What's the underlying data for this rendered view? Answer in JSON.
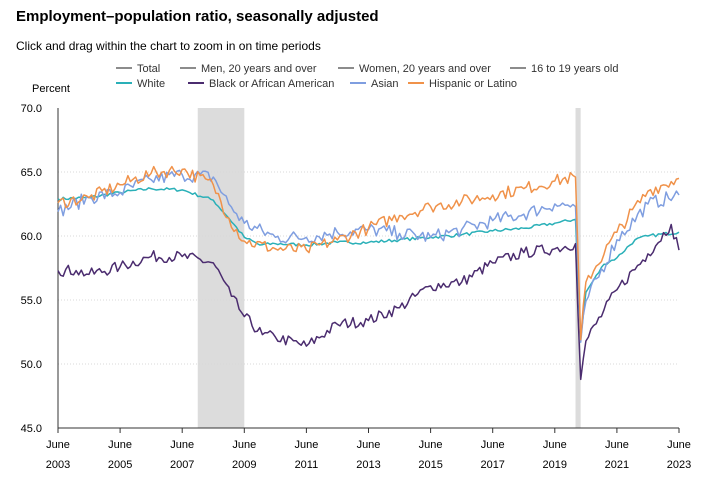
{
  "header": {
    "title": "Employment–population ratio, seasonally adjusted",
    "subtitle": "Click and drag within the chart to zoom in on time periods"
  },
  "chart_data": {
    "type": "line",
    "ylabel": "Percent",
    "ylim": [
      45.0,
      70.0
    ],
    "yticks": [
      "70.0",
      "65.0",
      "60.0",
      "55.0",
      "50.0",
      "45.0"
    ],
    "xlim": [
      "2003-06",
      "2023-06"
    ],
    "xticks": [
      {
        "month": "June",
        "year": "2003",
        "t": "2003-06"
      },
      {
        "month": "June",
        "year": "2005",
        "t": "2005-06"
      },
      {
        "month": "June",
        "year": "2007",
        "t": "2007-06"
      },
      {
        "month": "June",
        "year": "2009",
        "t": "2009-06"
      },
      {
        "month": "June",
        "year": "2011",
        "t": "2011-06"
      },
      {
        "month": "June",
        "year": "2013",
        "t": "2013-06"
      },
      {
        "month": "June",
        "year": "2015",
        "t": "2015-06"
      },
      {
        "month": "June",
        "year": "2017",
        "t": "2017-06"
      },
      {
        "month": "June",
        "year": "2019",
        "t": "2019-06"
      },
      {
        "month": "June",
        "year": "2021",
        "t": "2021-06"
      },
      {
        "month": "June",
        "year": "2023",
        "t": "2023-06"
      }
    ],
    "recessions": [
      {
        "start": "2007-12",
        "end": "2009-06"
      },
      {
        "start": "2020-02",
        "end": "2020-04"
      }
    ],
    "legend": [
      {
        "name": "Total",
        "color": "#8c8c8c",
        "plotted": false
      },
      {
        "name": "Men, 20 years and over",
        "color": "#8c8c8c",
        "plotted": false
      },
      {
        "name": "Women, 20 years and over",
        "color": "#8c8c8c",
        "plotted": false
      },
      {
        "name": "16 to 19 years old",
        "color": "#8c8c8c",
        "plotted": false
      },
      {
        "name": "White",
        "color": "#2ab0b8",
        "plotted": true
      },
      {
        "name": "Black or African American",
        "color": "#4b2c6f",
        "plotted": true
      },
      {
        "name": "Asian",
        "color": "#7f9ee0",
        "plotted": true
      },
      {
        "name": "Hispanic or Latino",
        "color": "#f0924a",
        "plotted": true
      }
    ],
    "series": [
      {
        "name": "White",
        "color": "#2ab0b8",
        "points": [
          [
            "2003-06",
            62.9
          ],
          [
            "2004-06",
            63.0
          ],
          [
            "2005-06",
            63.4
          ],
          [
            "2006-06",
            63.7
          ],
          [
            "2007-06",
            63.6
          ],
          [
            "2008-06",
            62.8
          ],
          [
            "2008-12",
            61.4
          ],
          [
            "2009-06",
            59.9
          ],
          [
            "2009-12",
            59.3
          ],
          [
            "2010-06",
            59.4
          ],
          [
            "2011-06",
            59.3
          ],
          [
            "2012-06",
            59.5
          ],
          [
            "2013-06",
            59.5
          ],
          [
            "2014-06",
            59.7
          ],
          [
            "2015-06",
            59.9
          ],
          [
            "2016-06",
            60.1
          ],
          [
            "2017-06",
            60.4
          ],
          [
            "2018-06",
            60.6
          ],
          [
            "2019-06",
            61.0
          ],
          [
            "2020-02",
            61.3
          ],
          [
            "2020-04",
            52.0
          ],
          [
            "2020-06",
            55.6
          ],
          [
            "2021-01",
            57.8
          ],
          [
            "2021-06",
            58.3
          ],
          [
            "2022-01",
            59.7
          ],
          [
            "2022-06",
            60.0
          ],
          [
            "2023-06",
            60.3
          ]
        ]
      },
      {
        "name": "Black or African American",
        "color": "#4b2c6f",
        "points": [
          [
            "2003-06",
            57.3
          ],
          [
            "2004-01",
            57.3
          ],
          [
            "2004-06",
            57.0
          ],
          [
            "2005-06",
            57.6
          ],
          [
            "2006-06",
            58.4
          ],
          [
            "2007-06",
            58.4
          ],
          [
            "2008-06",
            57.9
          ],
          [
            "2009-01",
            55.3
          ],
          [
            "2009-06",
            53.7
          ],
          [
            "2010-01",
            52.3
          ],
          [
            "2010-06",
            52.1
          ],
          [
            "2011-06",
            51.4
          ],
          [
            "2012-06",
            53.1
          ],
          [
            "2013-06",
            53.4
          ],
          [
            "2014-06",
            54.4
          ],
          [
            "2015-06",
            56.1
          ],
          [
            "2016-06",
            56.4
          ],
          [
            "2017-06",
            57.9
          ],
          [
            "2018-06",
            58.7
          ],
          [
            "2019-06",
            59.0
          ],
          [
            "2020-02",
            59.4
          ],
          [
            "2020-04",
            48.8
          ],
          [
            "2020-06",
            51.8
          ],
          [
            "2021-06",
            55.8
          ],
          [
            "2022-06",
            58.6
          ],
          [
            "2023-03",
            60.9
          ],
          [
            "2023-06",
            58.9
          ]
        ]
      },
      {
        "name": "Asian",
        "color": "#7f9ee0",
        "points": [
          [
            "2003-06",
            61.9
          ],
          [
            "2004-06",
            63.0
          ],
          [
            "2005-06",
            63.4
          ],
          [
            "2006-06",
            64.4
          ],
          [
            "2007-06",
            64.8
          ],
          [
            "2008-06",
            64.6
          ],
          [
            "2008-12",
            62.5
          ],
          [
            "2009-06",
            61.0
          ],
          [
            "2010-06",
            59.9
          ],
          [
            "2011-06",
            59.9
          ],
          [
            "2012-06",
            60.3
          ],
          [
            "2013-06",
            60.5
          ],
          [
            "2014-06",
            60.2
          ],
          [
            "2015-06",
            59.9
          ],
          [
            "2016-06",
            60.5
          ],
          [
            "2017-06",
            61.2
          ],
          [
            "2018-06",
            61.7
          ],
          [
            "2019-06",
            62.5
          ],
          [
            "2020-02",
            62.3
          ],
          [
            "2020-04",
            51.7
          ],
          [
            "2020-06",
            54.9
          ],
          [
            "2021-06",
            59.7
          ],
          [
            "2022-06",
            62.5
          ],
          [
            "2023-06",
            63.2
          ]
        ]
      },
      {
        "name": "Hispanic or Latino",
        "color": "#f0924a",
        "points": [
          [
            "2003-06",
            62.6
          ],
          [
            "2004-06",
            63.0
          ],
          [
            "2005-06",
            64.0
          ],
          [
            "2006-06",
            64.9
          ],
          [
            "2007-06",
            65.2
          ],
          [
            "2008-06",
            64.0
          ],
          [
            "2008-12",
            61.4
          ],
          [
            "2009-06",
            59.6
          ],
          [
            "2010-06",
            59.0
          ],
          [
            "2011-06",
            58.9
          ],
          [
            "2012-06",
            59.7
          ],
          [
            "2013-06",
            60.6
          ],
          [
            "2014-06",
            61.6
          ],
          [
            "2015-06",
            62.3
          ],
          [
            "2016-06",
            62.7
          ],
          [
            "2017-06",
            63.2
          ],
          [
            "2018-06",
            63.7
          ],
          [
            "2019-06",
            64.3
          ],
          [
            "2020-02",
            64.6
          ],
          [
            "2020-04",
            51.9
          ],
          [
            "2020-06",
            56.4
          ],
          [
            "2021-06",
            60.3
          ],
          [
            "2022-06",
            63.5
          ],
          [
            "2023-06",
            64.5
          ]
        ]
      }
    ]
  }
}
